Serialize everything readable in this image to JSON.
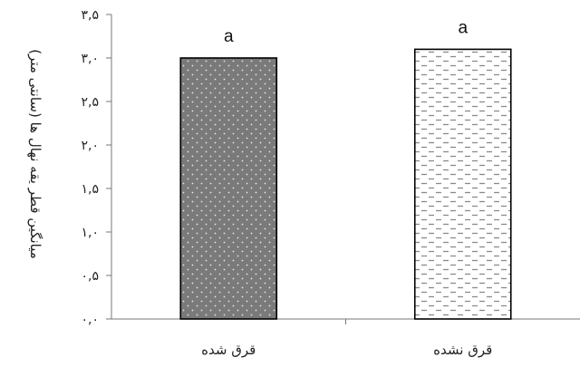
{
  "chart_data": {
    "type": "bar",
    "categories": [
      "قرق شده",
      "قرق نشده"
    ],
    "values": [
      3.0,
      3.1
    ],
    "data_labels": [
      "a",
      "a"
    ],
    "ylabel": "میانگین قطر یقه نهال ها (سانتی متر)",
    "ylim": [
      0,
      3.5
    ],
    "yticks": [
      "۰,۰",
      "۰,۵",
      "۱,۰",
      "۱,۵",
      "۲,۰",
      "۲,۵",
      "۳,۰",
      "۳,۵"
    ],
    "tick_values": [
      0,
      0.5,
      1.0,
      1.5,
      2.0,
      2.5,
      3.0,
      3.5
    ],
    "grid": false,
    "series_colors": [
      "#7a7a7a",
      "#ffffff"
    ],
    "pattern_colors": [
      "#e6e6e6",
      "#8a8a8a"
    ]
  }
}
